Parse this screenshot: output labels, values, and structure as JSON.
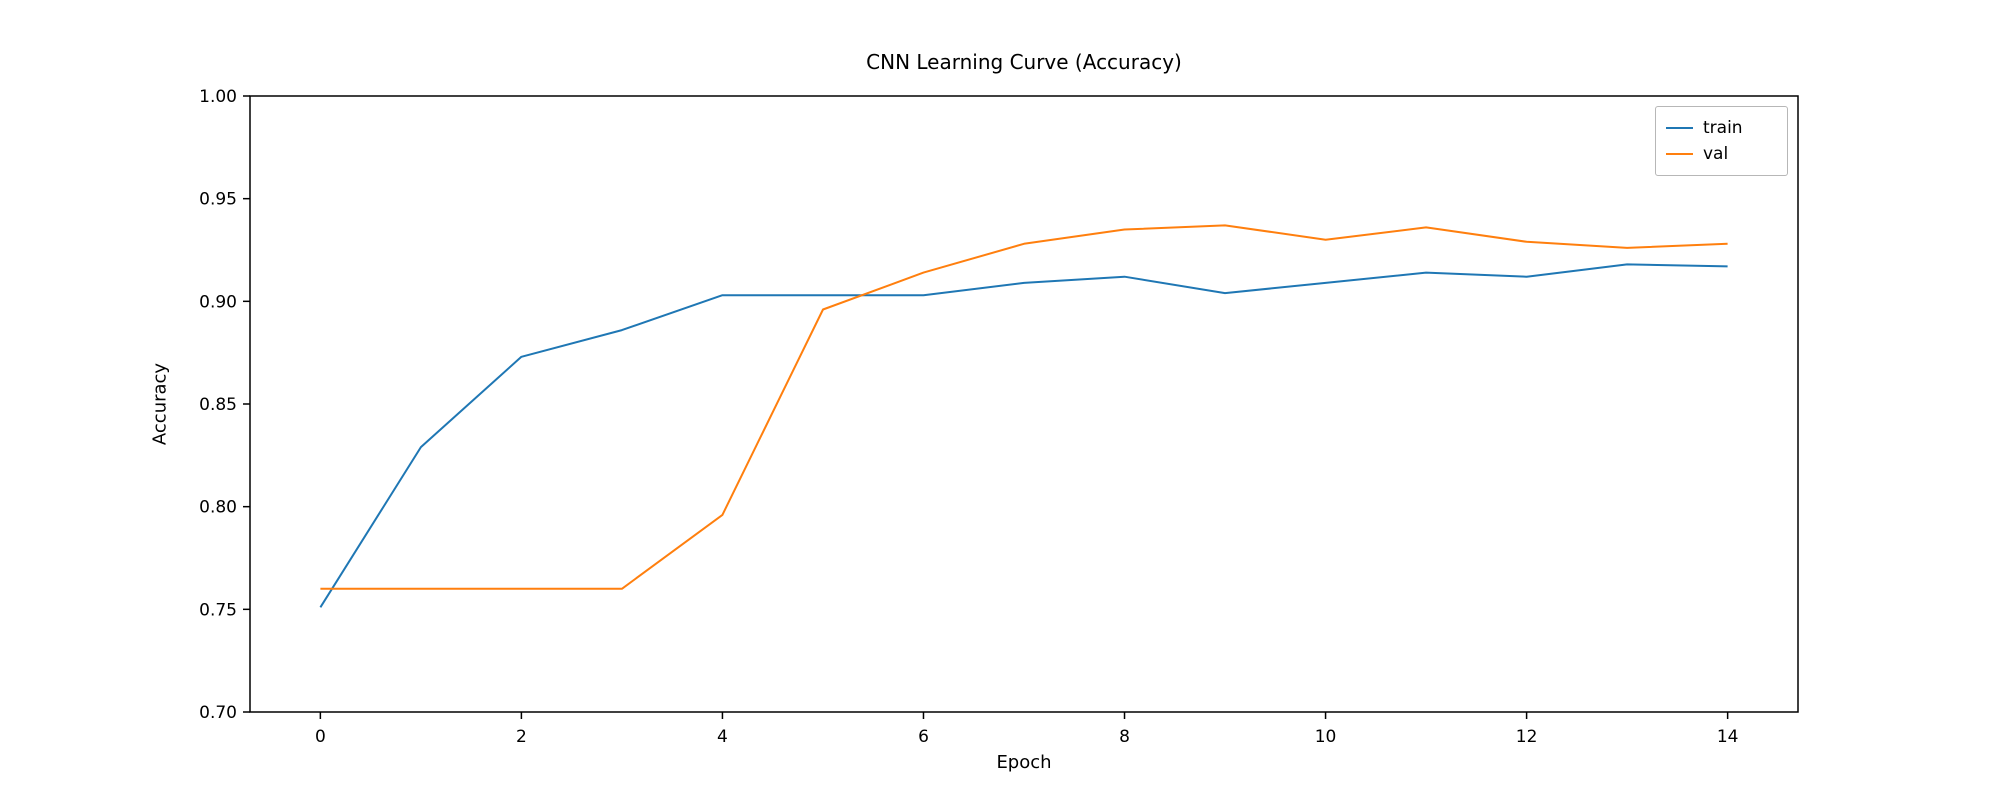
{
  "chart_data": {
    "type": "line",
    "title": "CNN Learning Curve (Accuracy)",
    "xlabel": "Epoch",
    "ylabel": "Accuracy",
    "x": [
      0,
      1,
      2,
      3,
      4,
      5,
      6,
      7,
      8,
      9,
      10,
      11,
      12,
      13,
      14
    ],
    "series": [
      {
        "name": "train",
        "color": "#1f77b4",
        "values": [
          0.751,
          0.829,
          0.873,
          0.886,
          0.903,
          0.903,
          0.903,
          0.909,
          0.912,
          0.904,
          0.909,
          0.914,
          0.912,
          0.918,
          0.917
        ]
      },
      {
        "name": "val",
        "color": "#ff7f0e",
        "values": [
          0.76,
          0.76,
          0.76,
          0.76,
          0.796,
          0.896,
          0.914,
          0.928,
          0.935,
          0.937,
          0.93,
          0.936,
          0.929,
          0.926,
          0.928
        ]
      }
    ],
    "xlim": [
      -0.7,
      14.7
    ],
    "ylim": [
      0.7,
      1.0
    ],
    "xtick_values": [
      0,
      2,
      4,
      6,
      8,
      10,
      12,
      14
    ],
    "xtick_labels": [
      "0",
      "2",
      "4",
      "6",
      "8",
      "10",
      "12",
      "14"
    ],
    "ytick_values": [
      0.7,
      0.75,
      0.8,
      0.85,
      0.9,
      0.95,
      1.0
    ],
    "ytick_labels": [
      "0.70",
      "0.75",
      "0.80",
      "0.85",
      "0.90",
      "0.95",
      "1.00"
    ],
    "grid": false,
    "legend_position": "upper right",
    "axis_color": "#000000",
    "background_color": "#ffffff"
  }
}
